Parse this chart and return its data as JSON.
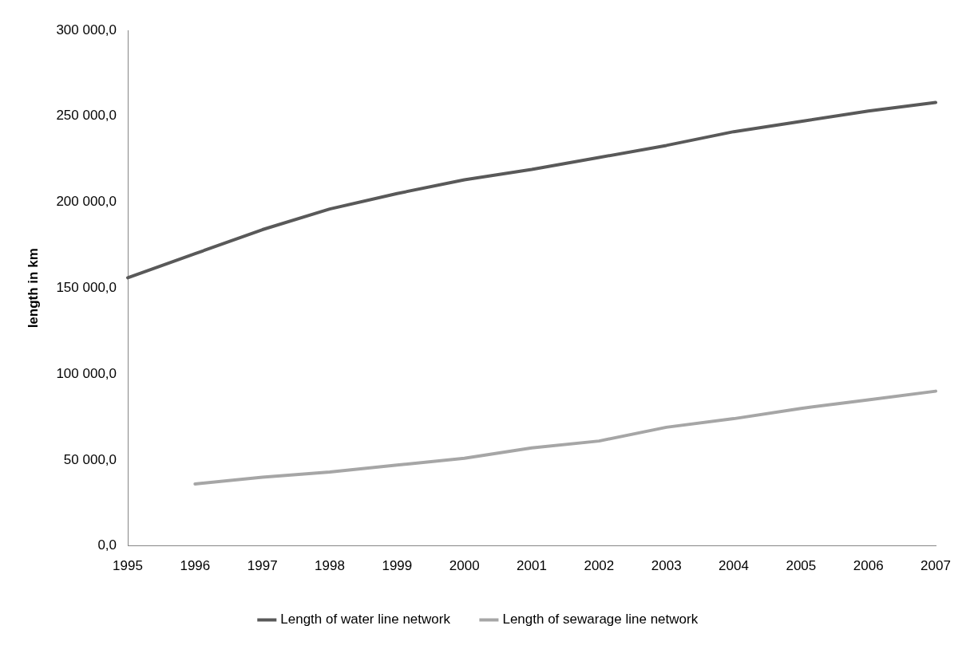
{
  "chart_data": {
    "type": "line",
    "ylabel": "length in km",
    "categories": [
      "1995",
      "1996",
      "1997",
      "1998",
      "1999",
      "2000",
      "2001",
      "2002",
      "2003",
      "2004",
      "2005",
      "2006",
      "2007"
    ],
    "series": [
      {
        "name": "Length of water line network",
        "color": "#595959",
        "values": [
          156000,
          170000,
          184000,
          196000,
          205000,
          213000,
          219000,
          226000,
          233000,
          241000,
          247000,
          253000,
          258000
        ]
      },
      {
        "name": "Length of sewarage line network",
        "color": "#a6a6a6",
        "values": [
          null,
          36000,
          40000,
          43000,
          47000,
          51000,
          57000,
          61000,
          69000,
          74000,
          80000,
          85000,
          90000
        ]
      }
    ],
    "ylim": [
      0,
      300000
    ],
    "yticks": [
      {
        "value": 0,
        "label": "0,0"
      },
      {
        "value": 50000,
        "label": "50 000,0"
      },
      {
        "value": 100000,
        "label": "100 000,0"
      },
      {
        "value": 150000,
        "label": "150 000,0"
      },
      {
        "value": 200000,
        "label": "200 000,0"
      },
      {
        "value": 250000,
        "label": "250 000,0"
      },
      {
        "value": 300000,
        "label": "300 000,0"
      }
    ],
    "grid": false,
    "legend": "bottom",
    "marker": "none",
    "line_style": "solid"
  }
}
